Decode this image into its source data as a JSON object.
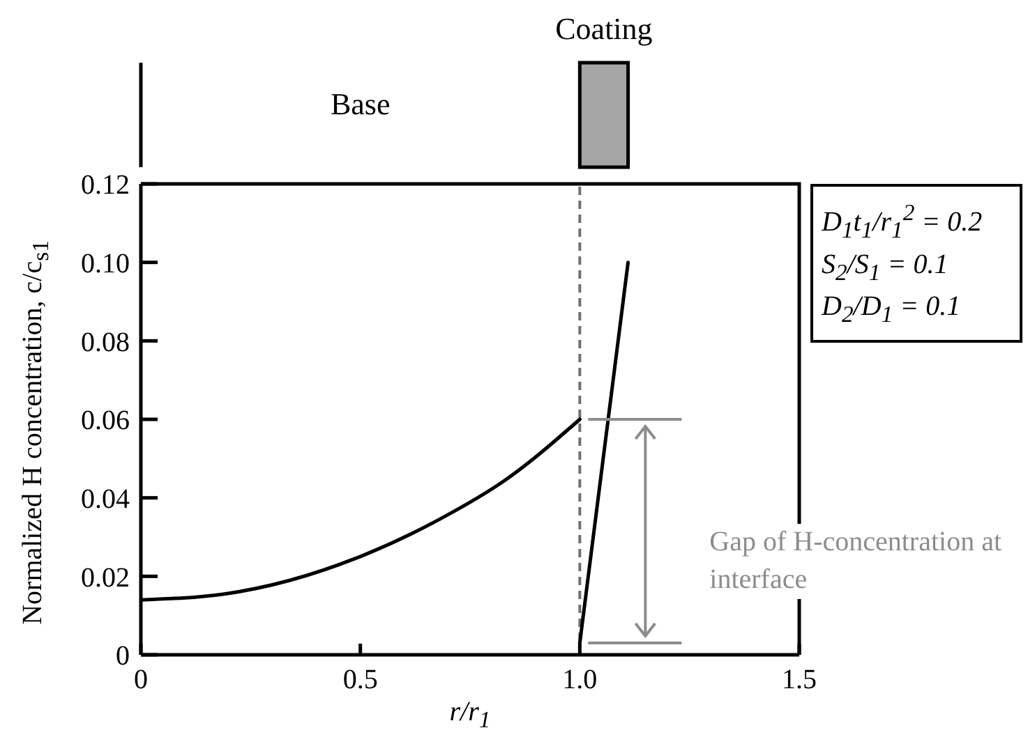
{
  "chart_data": {
    "type": "line",
    "xlabel": "r/r$_{1}$",
    "ylabel": "Normalized H concentration, c/c$_{s1}$",
    "xlim": [
      0,
      1.5
    ],
    "xticks": [
      0,
      0.5,
      {
        "value": 1,
        "label": "1.0"
      },
      1.5
    ],
    "ylim": [
      0,
      0.12
    ],
    "yticks": [
      0,
      0.02,
      0.04,
      0.06,
      0.08,
      {
        "value": 0.1,
        "label": "0.10"
      },
      0.12
    ],
    "series": [
      {
        "color": "#000000",
        "x": [
          0,
          0.19,
          0.34,
          0.51,
          0.68,
          0.83,
          1.0
        ],
        "values": [
          0.014,
          0.0155,
          0.019,
          0.0255,
          0.0345,
          0.0445,
          0.06
        ]
      },
      {
        "color": "#000000",
        "x": [
          1.0,
          1.11
        ],
        "values": [
          0.003,
          0.1
        ]
      }
    ],
    "ref_lines": [
      {
        "axis": "x",
        "value": 1.0,
        "color": "#707070",
        "line_style": "dashed"
      }
    ],
    "annotations": [
      "Base",
      "Coating",
      "D$_{1}$t$_{1}$/r$_{1}$$^{2}$ = 0.2",
      "S$_{2}$/S$_{1}$ = 0.1",
      "D$_{2}$/D$_{1}$ = 0.1",
      "Gap of H-concentration at interface"
    ],
    "line_style": "solid",
    "marker": "none"
  }
}
